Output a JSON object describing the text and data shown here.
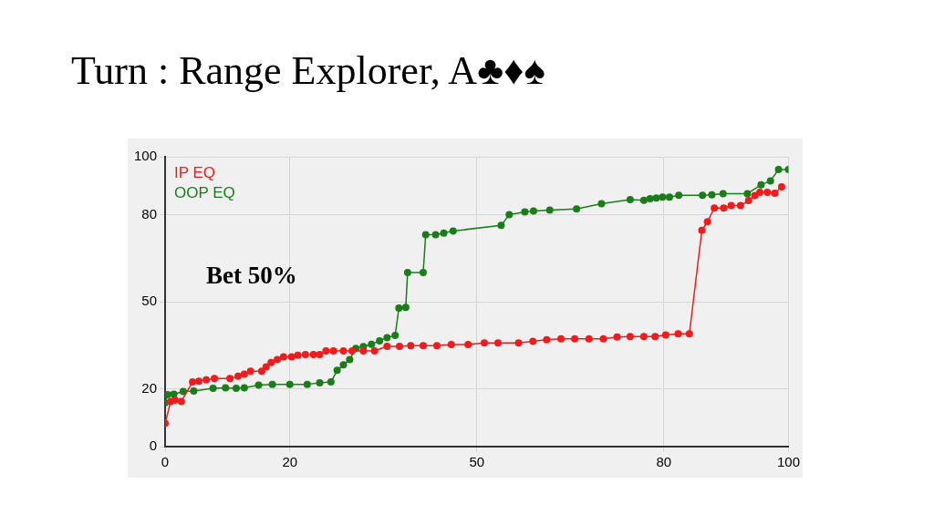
{
  "chart_data": {
    "type": "line",
    "title": "Turn : Range Explorer, A♣♦♠",
    "xlim": [
      0,
      100
    ],
    "xticks": [
      0,
      20,
      50,
      80,
      100
    ],
    "ylim": [
      0,
      100
    ],
    "yticks": [
      0,
      20,
      50,
      80,
      100
    ],
    "grid": true,
    "legend": "top left",
    "marker": "circle",
    "line_style": "solid",
    "annotations": [
      "Bet 50%"
    ],
    "series": [
      {
        "name": "IP EQ",
        "color": "#ee1c1c",
        "x": [
          0,
          0.9,
          1.6,
          2.6,
          4.4,
          5.4,
          6.6,
          7.9,
          10.4,
          11.7,
          12.7,
          13.7,
          15.5,
          16.2,
          17,
          18,
          19,
          20.3,
          21.3,
          22.5,
          23.8,
          24.8,
          25.8,
          27,
          28.6,
          30,
          31.8,
          33.6,
          35.6,
          37.6,
          39.4,
          41.4,
          43.6,
          45.9,
          48.6,
          51.2,
          53.4,
          56.7,
          59,
          61.2,
          63.5,
          65.7,
          68,
          70.3,
          72.5,
          74.6,
          76.8,
          78.6,
          80.3,
          82.3,
          84.1,
          86.1,
          87,
          88.1,
          89.6,
          90.8,
          92.3,
          93.6,
          94.6,
          95.4,
          96.6,
          97.8,
          98.9
        ],
        "values": [
          8,
          15.6,
          16,
          15.6,
          22.3,
          22.6,
          23,
          23.5,
          23.5,
          24.3,
          25,
          26,
          26,
          27.5,
          29,
          30,
          31,
          31,
          31.5,
          31.8,
          31.8,
          31.8,
          33,
          33,
          33,
          33,
          33,
          33,
          34.6,
          34.6,
          34.8,
          34.8,
          34.8,
          35.2,
          35.2,
          35.8,
          35.8,
          35.8,
          36.3,
          36.9,
          37.2,
          37.2,
          37.2,
          37.2,
          37.8,
          38,
          38,
          38,
          38.5,
          38.9,
          38.9,
          74.6,
          77.6,
          82.3,
          82.3,
          83.2,
          83.2,
          84.9,
          86.6,
          87.7,
          87.7,
          87.4,
          89.6
        ]
      },
      {
        "name": "OOP EQ",
        "color": "#1a7d1a",
        "x": [
          0,
          0.4,
          1.4,
          2.9,
          4.6,
          7.7,
          9.7,
          11.4,
          12.7,
          15,
          17.2,
          20,
          22.8,
          24.8,
          26.6,
          27.6,
          28.6,
          29.6,
          30.6,
          31.8,
          33.1,
          34.4,
          35.6,
          36.9,
          37.5,
          38.6,
          38.9,
          41.4,
          41.8,
          43.4,
          44.7,
          46.2,
          53.9,
          55.2,
          57.7,
          59.1,
          61.7,
          66,
          70,
          74.6,
          76.8,
          77.8,
          78.8,
          79.8,
          80.9,
          82.4,
          86.2,
          87.7,
          89.5,
          93.4,
          95.6,
          97.1,
          98.4,
          100
        ],
        "values": [
          15.1,
          17.9,
          18.1,
          19,
          19.2,
          20.1,
          20.3,
          20.1,
          20.3,
          21.2,
          21.5,
          21.5,
          21.5,
          22,
          22.3,
          26.3,
          28.2,
          30,
          33.9,
          34.5,
          35.3,
          36.5,
          37.6,
          38.4,
          47.8,
          48,
          60.1,
          60.1,
          73.1,
          73.1,
          73.7,
          74.4,
          76.3,
          80,
          81,
          81.3,
          81.6,
          82,
          83.8,
          85.2,
          85,
          85.5,
          85.8,
          86.1,
          86.1,
          86.7,
          86.7,
          86.9,
          87.3,
          87.3,
          90.3,
          91.7,
          95.6,
          95.6
        ]
      }
    ]
  }
}
